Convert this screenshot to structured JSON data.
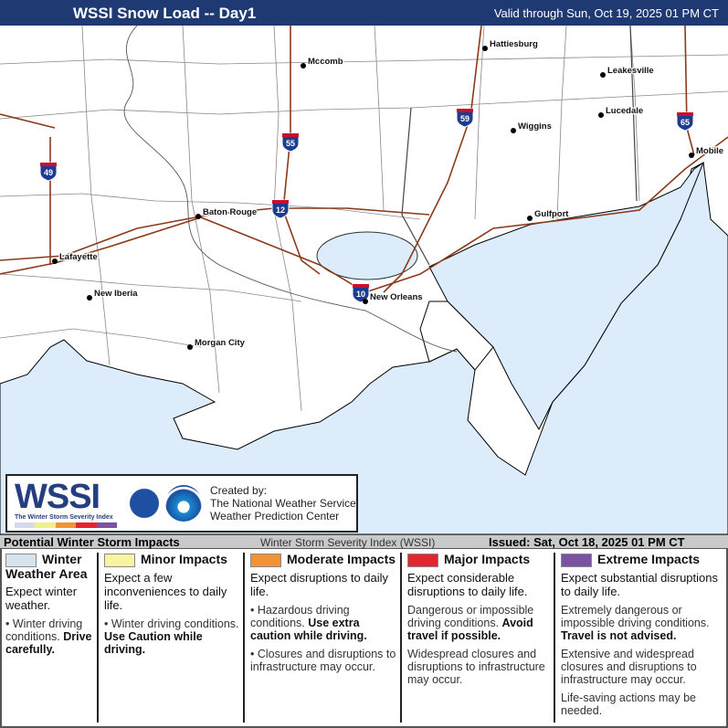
{
  "header": {
    "title": "WSSI Snow Load -- Day1",
    "valid": "Valid through Sun, Oct 19, 2025 01 PM CT"
  },
  "map": {
    "colors": {
      "water": "#dcecfb",
      "land": "#ffffff",
      "roads": "#8b3a1a",
      "boundaries": "#777777"
    },
    "cities": [
      {
        "name": "Hattiesburg"
      },
      {
        "name": "Mccomb"
      },
      {
        "name": "Leakesville"
      },
      {
        "name": "Lucedale"
      },
      {
        "name": "Wiggins"
      },
      {
        "name": "Mobile"
      },
      {
        "name": "Gulfport"
      },
      {
        "name": "Baton Rouge"
      },
      {
        "name": "Lafayette"
      },
      {
        "name": "New Iberia"
      },
      {
        "name": "New Orleans"
      },
      {
        "name": "Morgan City"
      }
    ],
    "interstates": [
      "49",
      "55",
      "59",
      "12",
      "10",
      "65"
    ]
  },
  "logo": {
    "wordmark": "WSSI",
    "subtitle": "The Winter Storm Severity Index",
    "created_by": "Created by:",
    "org1": "The National Weather Service",
    "org2": "Weather Prediction Center",
    "nws_seal": "NATIONAL WEATHER SERVICE",
    "noaa_seal": "NOAA"
  },
  "legend_bar": {
    "left": "Potential Winter Storm Impacts",
    "center": "Winter Storm Severity Index (WSSI)",
    "issued": "Issued: Sat, Oct 18, 2025 01 PM CT"
  },
  "categories": [
    {
      "title": "Winter Weather Area",
      "color": "#d6e2ec",
      "expect": "Expect winter weather.",
      "bullets": [
        {
          "text": "Winter driving conditions. ",
          "bold": "Drive carefully."
        }
      ]
    },
    {
      "title": "Minor Impacts",
      "color": "#f8f4a0",
      "expect": "Expect a few inconveniences to daily life.",
      "bullets": [
        {
          "text": "Winter driving conditions. ",
          "bold": "Use Caution while driving."
        }
      ]
    },
    {
      "title": "Moderate Impacts",
      "color": "#f39433",
      "expect": "Expect disruptions to daily life.",
      "bullets": [
        {
          "text": "Hazardous driving conditions. ",
          "bold": "Use extra caution while driving."
        },
        {
          "text": "Closures and disruptions to infrastructure may occur.",
          "bold": ""
        }
      ]
    },
    {
      "title": "Major Impacts",
      "color": "#e3252f",
      "expect": "Expect considerable disruptions to daily life.",
      "bullets": [
        {
          "text": "Dangerous or impossible driving conditions. ",
          "bold": "Avoid travel if possible."
        },
        {
          "text": "Widespread closures and disruptions to infrastructure may occur.",
          "bold": ""
        }
      ]
    },
    {
      "title": "Extreme Impacts",
      "color": "#7b52a3",
      "expect": "Expect substantial disruptions to daily life.",
      "bullets": [
        {
          "text": "Extremely dangerous or impossible driving conditions. ",
          "bold": "Travel is not advised."
        },
        {
          "text": "Extensive and widespread closures and disruptions to infrastructure may occur.",
          "bold": ""
        },
        {
          "text": "Life-saving actions may be needed.",
          "bold": ""
        }
      ]
    }
  ]
}
